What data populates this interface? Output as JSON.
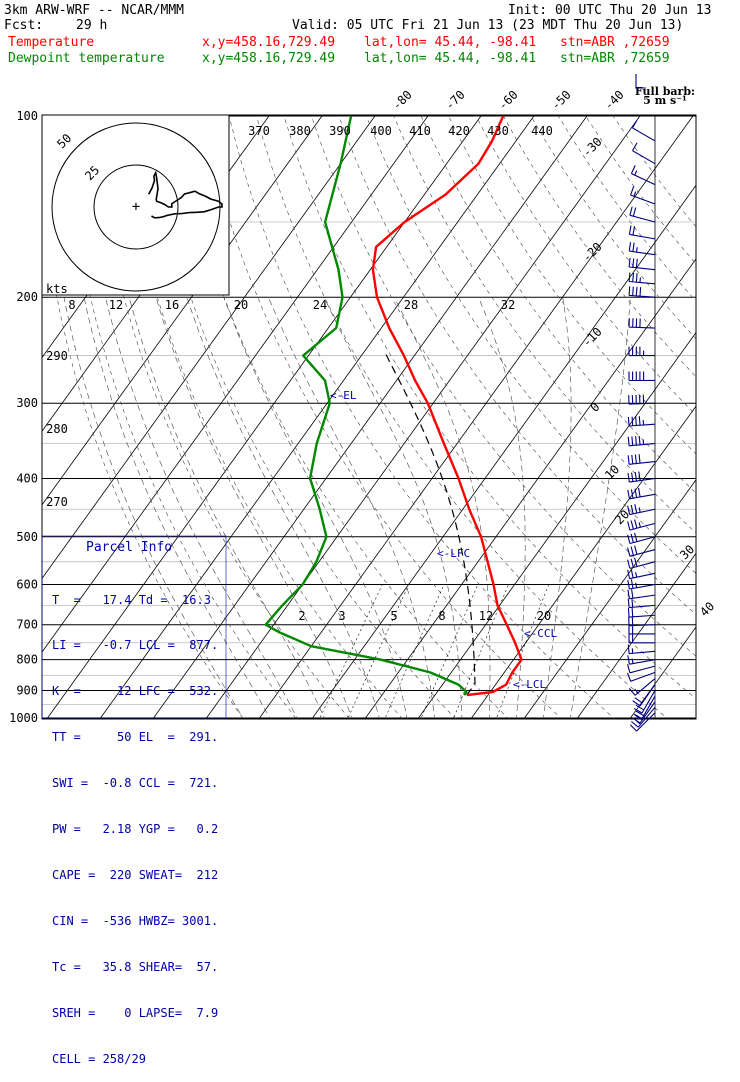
{
  "header": {
    "model_line": "3km ARW-WRF -- NCAR/MMM",
    "init_line": "Init: 00 UTC Thu 20 Jun 13",
    "fcst_label": "Fcst:",
    "fcst_hours": "29 h",
    "valid_line": "Valid: 05 UTC Fri 21 Jun 13 (23 MDT Thu 20 Jun 13)",
    "temp_line": "Temperature",
    "dewp_line": "Dewpoint temperature",
    "xy_text": "x,y=458.16,729.49",
    "latlon_text": "lat,lon= 45.44, -98.41",
    "station_text": "stn=ABR ,72659"
  },
  "colors": {
    "temperature": "#ff0000",
    "dewpoint": "#008800",
    "info": "#0000aa",
    "wind_barbs": "#000080"
  },
  "parcel_info": {
    "title": "Parcel Info",
    "rows": [
      "T  =   17.4 Td =  16.3",
      "LI =   -0.7 LCL =  877.",
      "K  =     12 LFC =  532.",
      "TT =     50 EL  =  291.",
      "SWI =  -0.8 CCL =  721.",
      "PW =   2.18 YGP =   0.2",
      "CAPE =  220 SWEAT=  212",
      "CIN =  -536 HWBZ= 3001.",
      "Tc =   35.8 SHEAR=  57.",
      "SREH =    0 LAPSE=  7.9",
      "CELL = 258/29"
    ]
  },
  "barb_legend": {
    "title": "Full barb:",
    "value": "5 m s⁻¹"
  },
  "level_labels": {
    "el": "<-EL",
    "lfc": "<-LFC",
    "ccl": "<-CCL",
    "lcl": "<-LCL"
  },
  "hodograph": {
    "units": "kts",
    "rings": [
      "25",
      "50"
    ]
  },
  "chart_data": {
    "type": "line",
    "pressure_labels": [
      "100",
      "200",
      "300",
      "400",
      "500",
      "600",
      "700",
      "800",
      "900",
      "1000"
    ],
    "isotherm_labels_top": [
      "-80",
      "-70",
      "-60",
      "-50",
      "-40"
    ],
    "isotherm_labels_right": [
      "-30",
      "-20",
      "-10",
      "0",
      "10",
      "20",
      "30",
      "40"
    ],
    "theta_labels": [
      "370",
      "380",
      "390",
      "400",
      "410",
      "420",
      "430",
      "440",
      "290",
      "280",
      "270"
    ],
    "mixing_ratio_labels": [
      "2",
      "3",
      "5",
      "8",
      "12",
      "20"
    ],
    "hodo_speed_labels": [
      "8",
      "12",
      "16",
      "20",
      "24",
      "28",
      "32"
    ],
    "series": [
      {
        "name": "Temperature",
        "points": [
          [
            916,
            16.0
          ],
          [
            905,
            20.5
          ],
          [
            880,
            22.0
          ],
          [
            840,
            21.5
          ],
          [
            800,
            21.5
          ],
          [
            750,
            18.0
          ],
          [
            700,
            14.0
          ],
          [
            650,
            9.6
          ],
          [
            600,
            6.0
          ],
          [
            550,
            1.8
          ],
          [
            500,
            -2.8
          ],
          [
            450,
            -8.8
          ],
          [
            400,
            -15.0
          ],
          [
            350,
            -22.5
          ],
          [
            300,
            -31.0
          ],
          [
            275,
            -36.5
          ],
          [
            250,
            -42.0
          ],
          [
            225,
            -48.5
          ],
          [
            200,
            -55.0
          ],
          [
            180,
            -59.5
          ],
          [
            165,
            -62.0
          ],
          [
            150,
            -60.0
          ],
          [
            135,
            -56.0
          ],
          [
            120,
            -54.0
          ],
          [
            110,
            -54.5
          ],
          [
            100,
            -55.8
          ]
        ]
      },
      {
        "name": "Dewpoint temperature",
        "points": [
          [
            916,
            15.5
          ],
          [
            905,
            15.5
          ],
          [
            880,
            13.0
          ],
          [
            840,
            6.0
          ],
          [
            800,
            -5.0
          ],
          [
            760,
            -20.0
          ],
          [
            720,
            -28.0
          ],
          [
            700,
            -31.5
          ],
          [
            650,
            -31.0
          ],
          [
            600,
            -30.0
          ],
          [
            550,
            -30.5
          ],
          [
            500,
            -32.0
          ],
          [
            450,
            -37.0
          ],
          [
            400,
            -43.0
          ],
          [
            350,
            -46.5
          ],
          [
            300,
            -49.5
          ],
          [
            275,
            -53.5
          ],
          [
            250,
            -61.0
          ],
          [
            225,
            -58.5
          ],
          [
            200,
            -61.5
          ],
          [
            180,
            -66.0
          ],
          [
            150,
            -75.0
          ],
          [
            120,
            -80.0
          ],
          [
            100,
            -84.5
          ]
        ]
      }
    ],
    "wind_profile": [
      [
        980,
        225,
        10
      ],
      [
        960,
        220,
        14
      ],
      [
        940,
        215,
        18
      ],
      [
        920,
        210,
        20
      ],
      [
        900,
        210,
        22
      ],
      [
        880,
        215,
        20
      ],
      [
        860,
        230,
        16
      ],
      [
        840,
        250,
        12
      ],
      [
        820,
        255,
        12
      ],
      [
        800,
        260,
        14
      ],
      [
        775,
        265,
        16
      ],
      [
        750,
        270,
        18
      ],
      [
        725,
        270,
        20
      ],
      [
        700,
        268,
        20
      ],
      [
        675,
        266,
        20
      ],
      [
        650,
        265,
        20
      ],
      [
        625,
        262,
        22
      ],
      [
        600,
        260,
        24
      ],
      [
        575,
        258,
        26
      ],
      [
        550,
        255,
        28
      ],
      [
        525,
        255,
        30
      ],
      [
        500,
        255,
        32
      ],
      [
        475,
        255,
        34
      ],
      [
        450,
        258,
        36
      ],
      [
        425,
        260,
        38
      ],
      [
        400,
        262,
        40
      ],
      [
        375,
        264,
        42
      ],
      [
        350,
        265,
        44
      ],
      [
        325,
        266,
        46
      ],
      [
        300,
        268,
        48
      ],
      [
        275,
        270,
        48
      ],
      [
        250,
        270,
        46
      ],
      [
        225,
        272,
        42
      ],
      [
        200,
        274,
        38
      ],
      [
        190,
        275,
        34
      ],
      [
        180,
        276,
        30
      ],
      [
        170,
        278,
        26
      ],
      [
        160,
        280,
        22
      ],
      [
        150,
        285,
        18
      ],
      [
        140,
        290,
        16
      ],
      [
        130,
        295,
        14
      ],
      [
        120,
        300,
        12
      ],
      [
        110,
        300,
        10
      ]
    ]
  }
}
